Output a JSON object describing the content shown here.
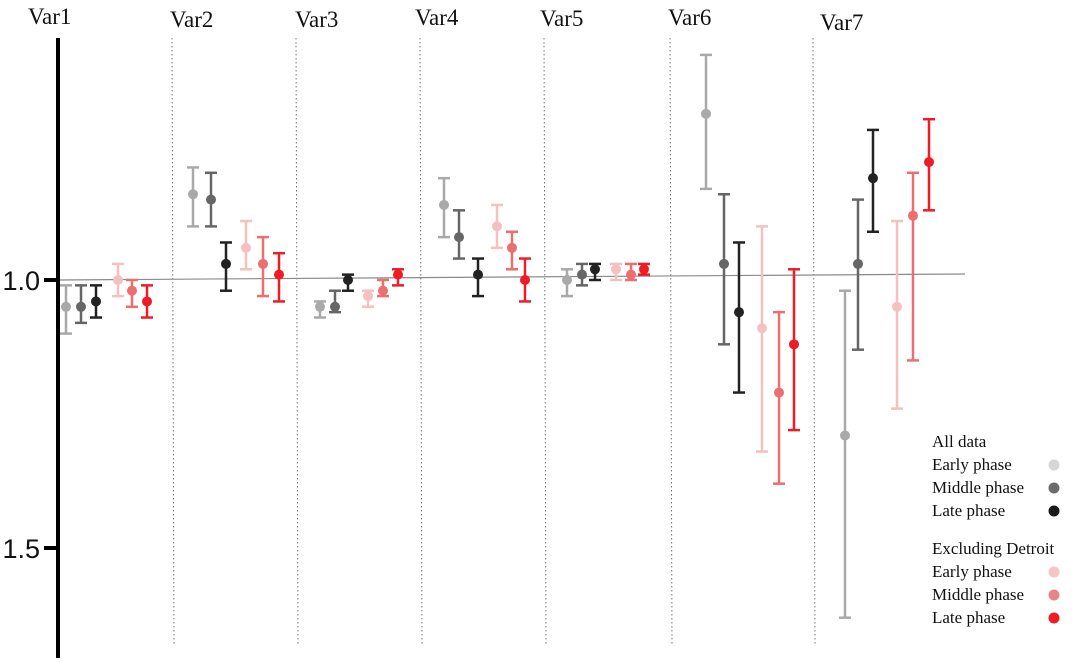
{
  "chart_data": {
    "type": "scatter",
    "subtype": "point-with-error-bars",
    "y_axis": {
      "inverted": true,
      "ylim": [
        0.55,
        1.7
      ],
      "ticks": [
        1.0,
        1.5
      ],
      "tick_labels": [
        "1.0",
        "1.5"
      ]
    },
    "reference_line": 1.0,
    "grid": false,
    "categories": [
      "Var1",
      "Var2",
      "Var3",
      "Var4",
      "Var5",
      "Var6",
      "Var7"
    ],
    "legend": {
      "placement": "bottom-right",
      "groups": [
        {
          "title": "All data",
          "entries": [
            {
              "label": "Early phase",
              "color": "#d6d6d6"
            },
            {
              "label": "Middle phase",
              "color": "#6b6b6b"
            },
            {
              "label": "Late phase",
              "color": "#1a1a1a"
            }
          ]
        },
        {
          "title": "Excluding Detroit",
          "entries": [
            {
              "label": "Early phase",
              "color": "#f5c4c4"
            },
            {
              "label": "Middle phase",
              "color": "#e58585"
            },
            {
              "label": "Late phase",
              "color": "#ee1c25"
            }
          ]
        }
      ]
    },
    "series": [
      {
        "group": "All data",
        "phase": "Early phase",
        "color": "#a9a9a9",
        "values": [
          1.05,
          0.84,
          1.05,
          0.86,
          1.0,
          0.69,
          1.29
        ],
        "lower": [
          1.01,
          0.79,
          1.04,
          0.81,
          0.98,
          0.58,
          1.02
        ],
        "upper": [
          1.1,
          0.9,
          1.07,
          0.92,
          1.03,
          0.83,
          1.63
        ]
      },
      {
        "group": "All data",
        "phase": "Middle phase",
        "color": "#666666",
        "values": [
          1.05,
          0.85,
          1.05,
          0.92,
          0.99,
          0.97,
          0.97
        ],
        "lower": [
          1.01,
          0.8,
          1.02,
          0.87,
          0.97,
          0.84,
          0.85
        ],
        "upper": [
          1.08,
          0.9,
          1.06,
          0.96,
          1.01,
          1.12,
          1.13
        ]
      },
      {
        "group": "All data",
        "phase": "Late phase",
        "color": "#222222",
        "values": [
          1.04,
          0.97,
          1.0,
          0.99,
          0.98,
          1.06,
          0.81
        ],
        "lower": [
          1.01,
          0.93,
          0.99,
          0.96,
          0.97,
          0.93,
          0.72
        ],
        "upper": [
          1.07,
          1.02,
          1.02,
          1.03,
          1.0,
          1.21,
          0.91
        ]
      },
      {
        "group": "Excluding Detroit",
        "phase": "Early phase",
        "color": "#f4c0c0",
        "values": [
          1.0,
          0.94,
          1.03,
          0.9,
          0.98,
          1.09,
          1.05
        ],
        "lower": [
          0.97,
          0.89,
          1.02,
          0.86,
          0.97,
          0.9,
          0.89
        ],
        "upper": [
          1.03,
          0.98,
          1.05,
          0.94,
          1.0,
          1.32,
          1.24
        ]
      },
      {
        "group": "Excluding Detroit",
        "phase": "Middle phase",
        "color": "#ec6e6e",
        "values": [
          1.02,
          0.97,
          1.02,
          0.94,
          0.99,
          1.21,
          0.88
        ],
        "lower": [
          1.0,
          0.92,
          1.0,
          0.91,
          0.97,
          1.06,
          0.8
        ],
        "upper": [
          1.05,
          1.03,
          1.03,
          0.98,
          1.0,
          1.38,
          1.15
        ]
      },
      {
        "group": "Excluding Detroit",
        "phase": "Late phase",
        "color": "#ee1c25",
        "values": [
          1.04,
          0.99,
          0.99,
          1.0,
          0.98,
          1.12,
          0.78
        ],
        "lower": [
          1.01,
          0.95,
          0.98,
          0.96,
          0.97,
          0.98,
          0.7
        ],
        "upper": [
          1.07,
          1.04,
          1.01,
          1.04,
          0.99,
          1.28,
          0.87
        ]
      }
    ]
  }
}
